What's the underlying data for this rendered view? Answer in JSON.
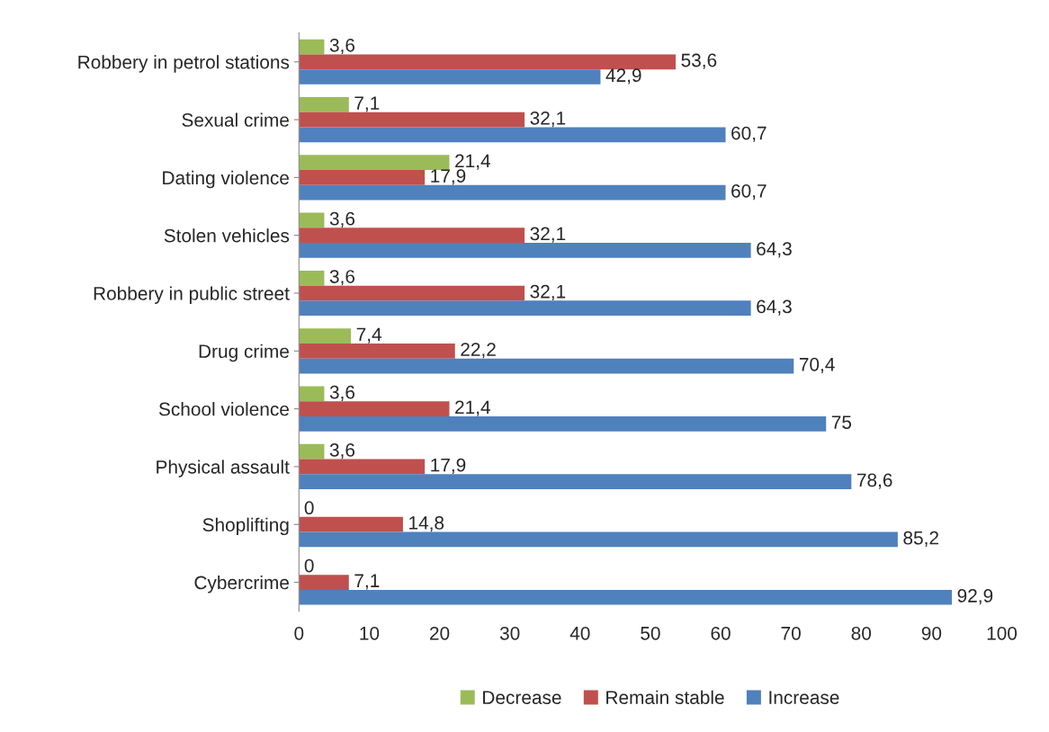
{
  "chart_data": {
    "type": "bar",
    "orientation": "horizontal",
    "categories": [
      "Robbery in petrol stations",
      "Sexual crime",
      "Dating violence",
      "Stolen vehicles",
      "Robbery in public street",
      "Drug crime",
      "School violence",
      "Physical assault",
      "Shoplifting",
      "Cybercrime"
    ],
    "series": [
      {
        "name": "Decrease",
        "color": "#9bbb59",
        "values": [
          3.6,
          7.1,
          21.4,
          3.6,
          3.6,
          7.4,
          3.6,
          3.6,
          0,
          0
        ],
        "value_labels": [
          "3,6",
          "7,1",
          "21,4",
          "3,6",
          "3,6",
          "7,4",
          "3,6",
          "3,6",
          "0",
          "0"
        ]
      },
      {
        "name": "Remain stable",
        "color": "#c0504d",
        "values": [
          53.6,
          32.1,
          17.9,
          32.1,
          32.1,
          22.2,
          21.4,
          17.9,
          14.8,
          7.1
        ],
        "value_labels": [
          "53,6",
          "32,1",
          "17,9",
          "32,1",
          "32,1",
          "22,2",
          "21,4",
          "17,9",
          "14,8",
          "7,1"
        ]
      },
      {
        "name": "Increase",
        "color": "#4f81bd",
        "values": [
          42.9,
          60.7,
          60.7,
          64.3,
          64.3,
          70.4,
          75,
          78.6,
          85.2,
          92.9
        ],
        "value_labels": [
          "42,9",
          "60,7",
          "60,7",
          "64,3",
          "64,3",
          "70,4",
          "75",
          "78,6",
          "85,2",
          "92,9"
        ]
      }
    ],
    "xlim": [
      0,
      100
    ],
    "xticks": [
      0,
      10,
      20,
      30,
      40,
      50,
      60,
      70,
      80,
      90,
      100
    ],
    "grid": false,
    "legend": "bottom"
  }
}
